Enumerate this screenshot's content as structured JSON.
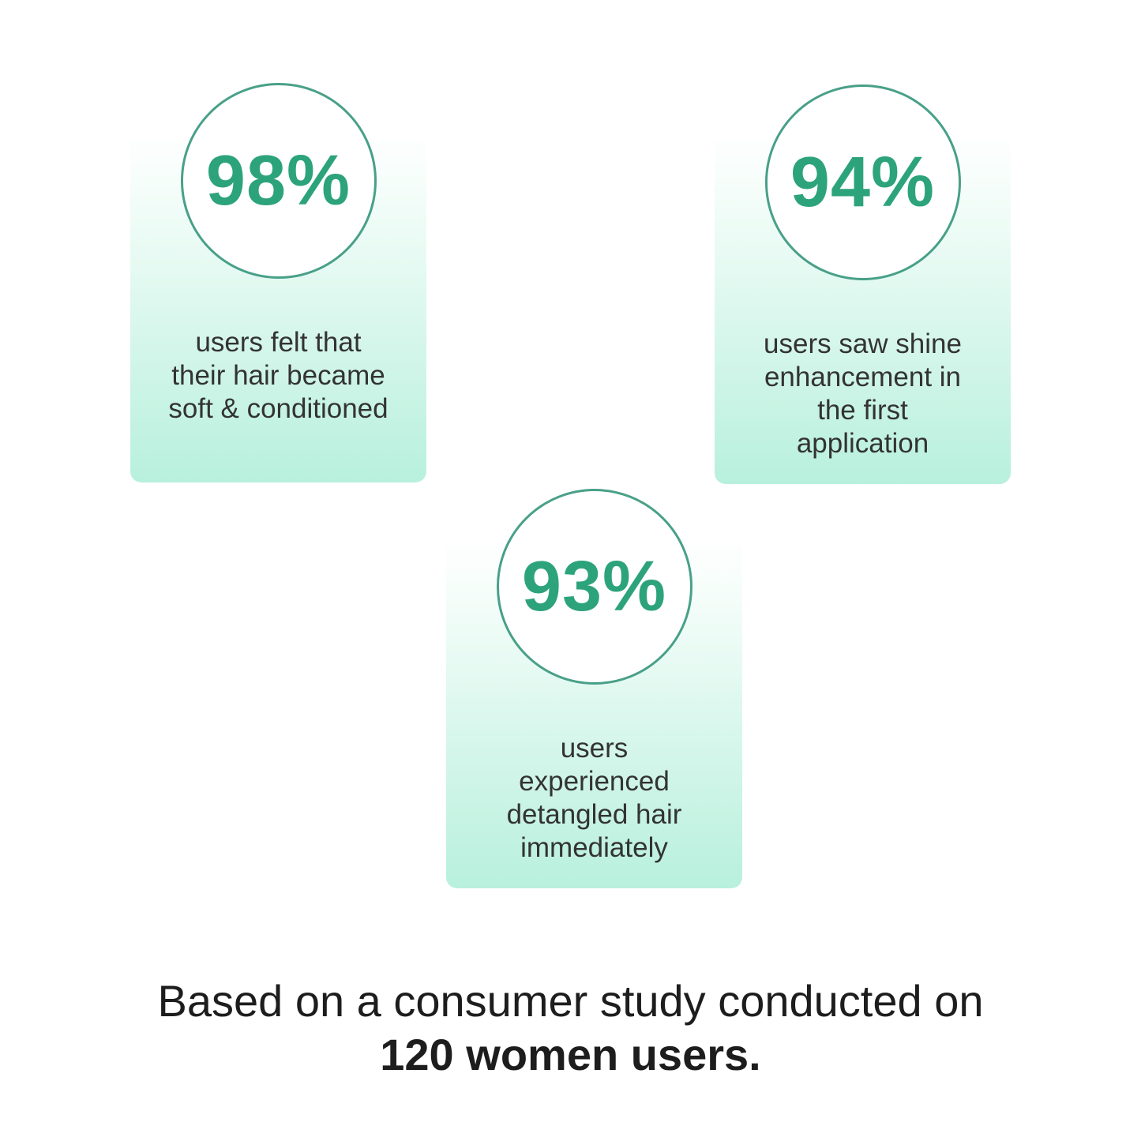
{
  "theme": {
    "accent_green": "#2da37c",
    "circle_border_green": "#48a088",
    "card_mint": "#b8f0dd",
    "description_text": "#333333",
    "footer_text": "#1d1d1d",
    "background": "#ffffff"
  },
  "stats": [
    {
      "percent": "98%",
      "description": "users felt that their hair became soft & conditioned"
    },
    {
      "percent": "94%",
      "description": "users saw shine enhancement in the first application"
    },
    {
      "percent": "93%",
      "description": "users experienced detangled hair immediately"
    }
  ],
  "footer": {
    "line1": "Based on a consumer study conducted on",
    "line2": "120 women users."
  }
}
